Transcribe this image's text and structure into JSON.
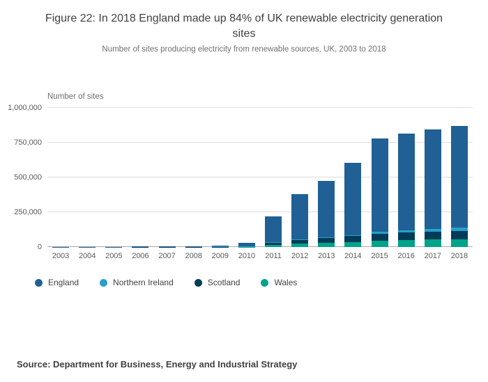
{
  "page": {
    "title": "Figure 22: In 2018 England made up 84% of UK renewable electricity generation sites",
    "subtitle": "Number of sites producing electricity from renewable sources, UK, 2003 to 2018",
    "source": "Source: Department for Business, Energy and Industrial Strategy"
  },
  "chart_data": {
    "type": "bar",
    "stacked": true,
    "title": "Figure 22: In 2018 England made up 84% of UK renewable electricity generation sites",
    "subtitle": "Number of sites producing electricity from renewable sources, UK, 2003 to 2018",
    "ylabel": "Number of sites",
    "xlabel": "",
    "ylim": [
      0,
      1000000
    ],
    "yticks": [
      0,
      250000,
      500000,
      750000,
      1000000
    ],
    "ytick_labels": [
      "0",
      "250,000",
      "500,000",
      "750,000",
      "1,000,000"
    ],
    "grid": true,
    "legend_position": "bottom",
    "categories": [
      "2003",
      "2004",
      "2005",
      "2006",
      "2007",
      "2008",
      "2009",
      "2010",
      "2011",
      "2012",
      "2013",
      "2014",
      "2015",
      "2016",
      "2017",
      "2018"
    ],
    "series": [
      {
        "name": "England",
        "color": "#206095",
        "values": [
          1400,
          1700,
          2100,
          2600,
          3300,
          4500,
          8000,
          22000,
          185000,
          325000,
          405000,
          520000,
          670000,
          695000,
          715000,
          730000
        ]
      },
      {
        "name": "Northern Ireland",
        "color": "#27a0cc",
        "values": [
          100,
          120,
          150,
          200,
          250,
          350,
          500,
          1000,
          3000,
          5000,
          6000,
          8000,
          14000,
          18000,
          22000,
          26000
        ]
      },
      {
        "name": "Scotland",
        "color": "#003c57",
        "values": [
          300,
          350,
          450,
          550,
          700,
          1000,
          2000,
          4000,
          17000,
          28000,
          35000,
          42000,
          50000,
          53000,
          55000,
          57000
        ]
      },
      {
        "name": "Wales",
        "color": "#00a38a",
        "values": [
          200,
          250,
          300,
          400,
          500,
          700,
          1500,
          3000,
          15000,
          25000,
          30000,
          38000,
          48000,
          52000,
          55000,
          57000
        ]
      }
    ],
    "stack_order_bottom_to_top": [
      "Wales",
      "Scotland",
      "Northern Ireland",
      "England"
    ]
  }
}
